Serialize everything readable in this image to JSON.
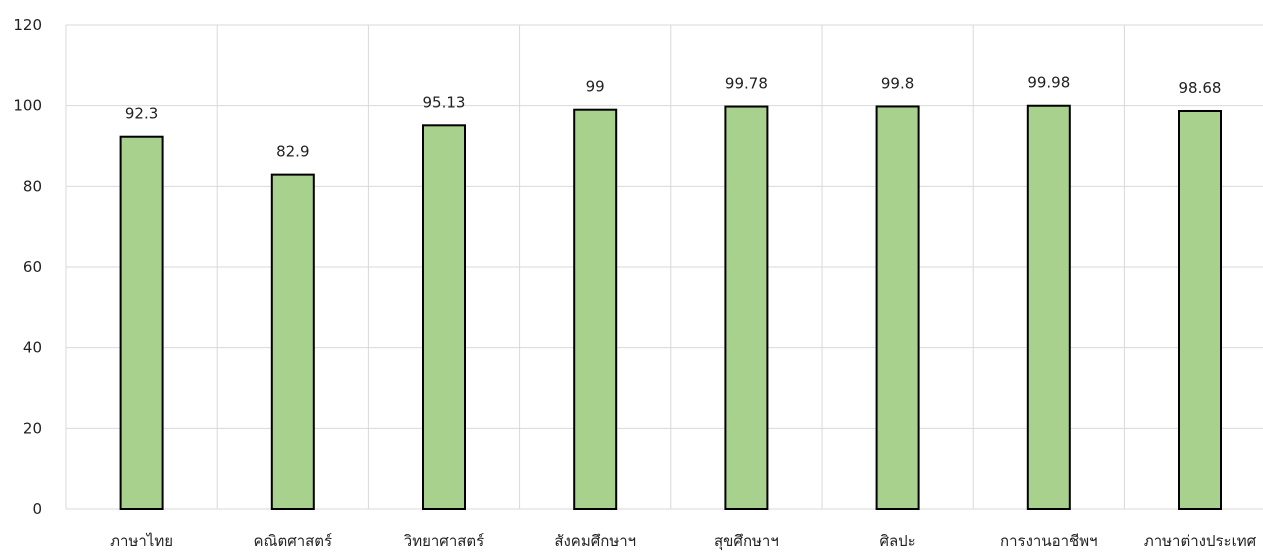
{
  "chart_data": {
    "type": "bar",
    "categories": [
      "ภาษาไทย",
      "คณิตศาสตร์",
      "วิทยาศาสตร์",
      "สังคมศึกษาฯ",
      "สุขศึกษาฯ",
      "ศิลปะ",
      "การงานอาชีพฯ",
      "ภาษาต่างประเทศ"
    ],
    "values": [
      92.3,
      82.9,
      95.13,
      99,
      99.78,
      99.8,
      99.98,
      98.68
    ],
    "data_labels": [
      "92.3",
      "82.9",
      "95.13",
      "99",
      "99.78",
      "99.8",
      "99.98",
      "98.68"
    ],
    "ylim": [
      0,
      120
    ],
    "yticks": [
      0,
      20,
      40,
      60,
      80,
      100,
      120
    ],
    "title": "",
    "xlabel": "",
    "ylabel": "",
    "grid": true,
    "legend": "none",
    "bar_color": "#a9d18e",
    "bar_border_color": "#000000"
  }
}
